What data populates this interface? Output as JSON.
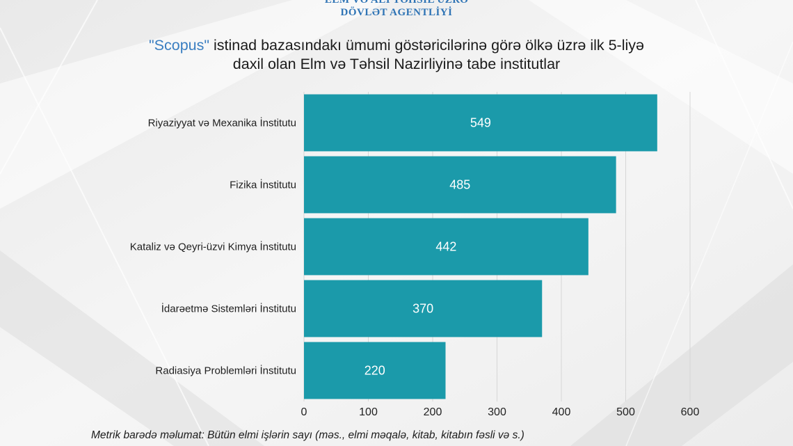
{
  "header": {
    "agency_line1": "ELM VƏ ALİ TƏHSİL ÜZRƏ",
    "agency_line2": "DÖVLƏT AGENTLİYİ"
  },
  "colors": {
    "bar": "#1b9aaa",
    "title_highlight": "#3a7ec1",
    "agency_text": "#2f74b5"
  },
  "chart_data": {
    "type": "bar",
    "orientation": "horizontal",
    "title_highlight": "\"Scopus\"",
    "title_line1_rest": " istinad bazasındakı ümumi göstəricilərinə görə ölkə üzrə ilk 5-liyə",
    "title_line2": "daxil olan Elm və Təhsil Nazirliyinə tabe institutlar",
    "categories": [
      "Riyaziyyat və Mexanika İnstitutu",
      "Fizika İnstitutu",
      "Kataliz və Qeyri-üzvi Kimya İnstitutu",
      "İdarəetmə Sistemləri İnstitutu",
      "Radiasiya Problemləri İnstitutu"
    ],
    "values": [
      549,
      485,
      442,
      370,
      220
    ],
    "xlim": [
      0,
      600
    ],
    "xticks": [
      0,
      100,
      200,
      300,
      400,
      500,
      600
    ],
    "grid": true,
    "legend": "none",
    "footnote": "Metrik barədə məlumat: Bütün elmi işlərin sayı (məs., elmi məqalə, kitab, kitabın fəsli və s.)"
  }
}
